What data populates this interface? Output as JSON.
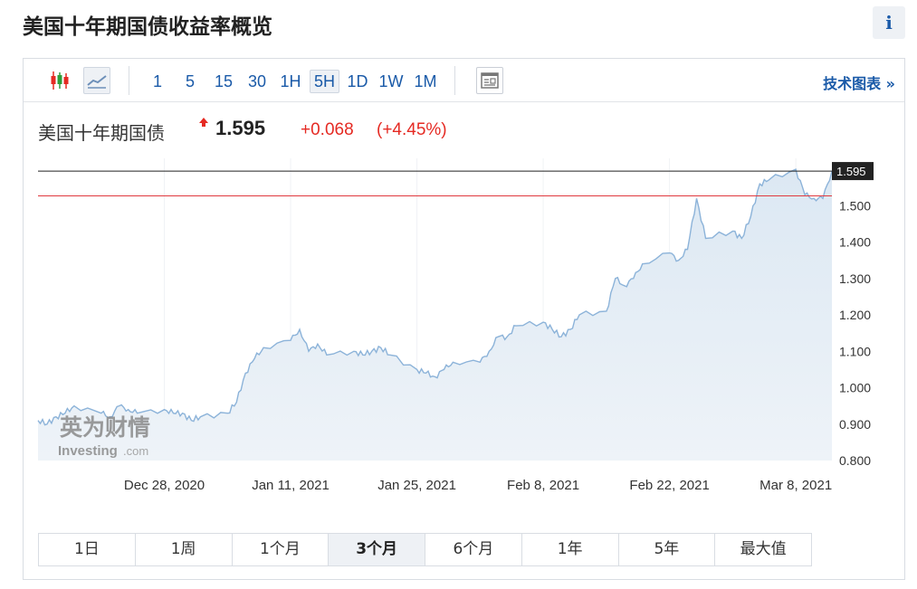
{
  "page_title": "美国十年期国债收益率概览",
  "info_label": "i",
  "toolbar": {
    "icons": [
      "candlestick-icon",
      "line-chart-icon",
      "news-panel-icon"
    ],
    "intervals": [
      "1",
      "5",
      "15",
      "30",
      "1H",
      "5H",
      "1D",
      "1W",
      "1M"
    ],
    "active_interval": "5H",
    "tech_chart_label": "技术图表 »"
  },
  "quote": {
    "name": "美国十年期国债",
    "price": "1.595",
    "change": "+0.068",
    "change_pct": "(+4.45%)",
    "up_color": "#e52a23"
  },
  "watermark": {
    "cn": "英为财情",
    "en": "Investing",
    "suffix": ".com"
  },
  "chart_data": {
    "type": "area",
    "x_tick_labels": [
      "Dec 28, 2020",
      "Jan 11, 2021",
      "Jan 25, 2021",
      "Feb 8, 2021",
      "Feb 22, 2021",
      "Mar 8, 2021"
    ],
    "y_tick_labels": [
      "1.500",
      "1.400",
      "1.300",
      "1.200",
      "1.100",
      "1.000",
      "0.900",
      "0.800"
    ],
    "ylim": [
      0.8,
      1.63
    ],
    "current_value": 1.595,
    "current_label": "1.595",
    "reference_line": 1.527,
    "x_start": "2020-12-14",
    "x_end": "2021-03-12",
    "points": [
      [
        "2020-12-14",
        0.91
      ],
      [
        "2020-12-15",
        0.9
      ],
      [
        "2020-12-16",
        0.92
      ],
      [
        "2020-12-17",
        0.93
      ],
      [
        "2020-12-18",
        0.95
      ],
      [
        "2020-12-21",
        0.93
      ],
      [
        "2020-12-22",
        0.92
      ],
      [
        "2020-12-23",
        0.95
      ],
      [
        "2020-12-24",
        0.94
      ],
      [
        "2020-12-25",
        0.93
      ],
      [
        "2020-12-28",
        0.94
      ],
      [
        "2020-12-29",
        0.93
      ],
      [
        "2020-12-30",
        0.93
      ],
      [
        "2020-12-31",
        0.91
      ],
      [
        "2021-01-01",
        0.92
      ],
      [
        "2021-01-04",
        0.93
      ],
      [
        "2021-01-05",
        0.96
      ],
      [
        "2021-01-06",
        1.04
      ],
      [
        "2021-01-07",
        1.08
      ],
      [
        "2021-01-08",
        1.11
      ],
      [
        "2021-01-11",
        1.13
      ],
      [
        "2021-01-12",
        1.16
      ],
      [
        "2021-01-13",
        1.1
      ],
      [
        "2021-01-14",
        1.12
      ],
      [
        "2021-01-15",
        1.09
      ],
      [
        "2021-01-18",
        1.1
      ],
      [
        "2021-01-19",
        1.09
      ],
      [
        "2021-01-20",
        1.1
      ],
      [
        "2021-01-21",
        1.11
      ],
      [
        "2021-01-22",
        1.09
      ],
      [
        "2021-01-25",
        1.05
      ],
      [
        "2021-01-26",
        1.04
      ],
      [
        "2021-01-27",
        1.03
      ],
      [
        "2021-01-28",
        1.05
      ],
      [
        "2021-01-29",
        1.07
      ],
      [
        "2021-02-01",
        1.07
      ],
      [
        "2021-02-02",
        1.1
      ],
      [
        "2021-02-03",
        1.14
      ],
      [
        "2021-02-04",
        1.14
      ],
      [
        "2021-02-05",
        1.17
      ],
      [
        "2021-02-08",
        1.18
      ],
      [
        "2021-02-09",
        1.16
      ],
      [
        "2021-02-10",
        1.14
      ],
      [
        "2021-02-11",
        1.16
      ],
      [
        "2021-02-12",
        1.2
      ],
      [
        "2021-02-15",
        1.21
      ],
      [
        "2021-02-16",
        1.3
      ],
      [
        "2021-02-17",
        1.28
      ],
      [
        "2021-02-18",
        1.3
      ],
      [
        "2021-02-19",
        1.34
      ],
      [
        "2021-02-22",
        1.37
      ],
      [
        "2021-02-23",
        1.35
      ],
      [
        "2021-02-24",
        1.38
      ],
      [
        "2021-02-25",
        1.52
      ],
      [
        "2021-02-26",
        1.41
      ],
      [
        "2021-03-01",
        1.43
      ],
      [
        "2021-03-02",
        1.41
      ],
      [
        "2021-03-03",
        1.47
      ],
      [
        "2021-03-04",
        1.56
      ],
      [
        "2021-03-05",
        1.57
      ],
      [
        "2021-03-08",
        1.6
      ],
      [
        "2021-03-09",
        1.53
      ],
      [
        "2021-03-10",
        1.52
      ],
      [
        "2021-03-11",
        1.52
      ],
      [
        "2021-03-12",
        1.595
      ]
    ]
  },
  "ranges": [
    "1日",
    "1周",
    "1个月",
    "3个月",
    "6个月",
    "1年",
    "5年",
    "最大值"
  ],
  "active_range": "3个月"
}
